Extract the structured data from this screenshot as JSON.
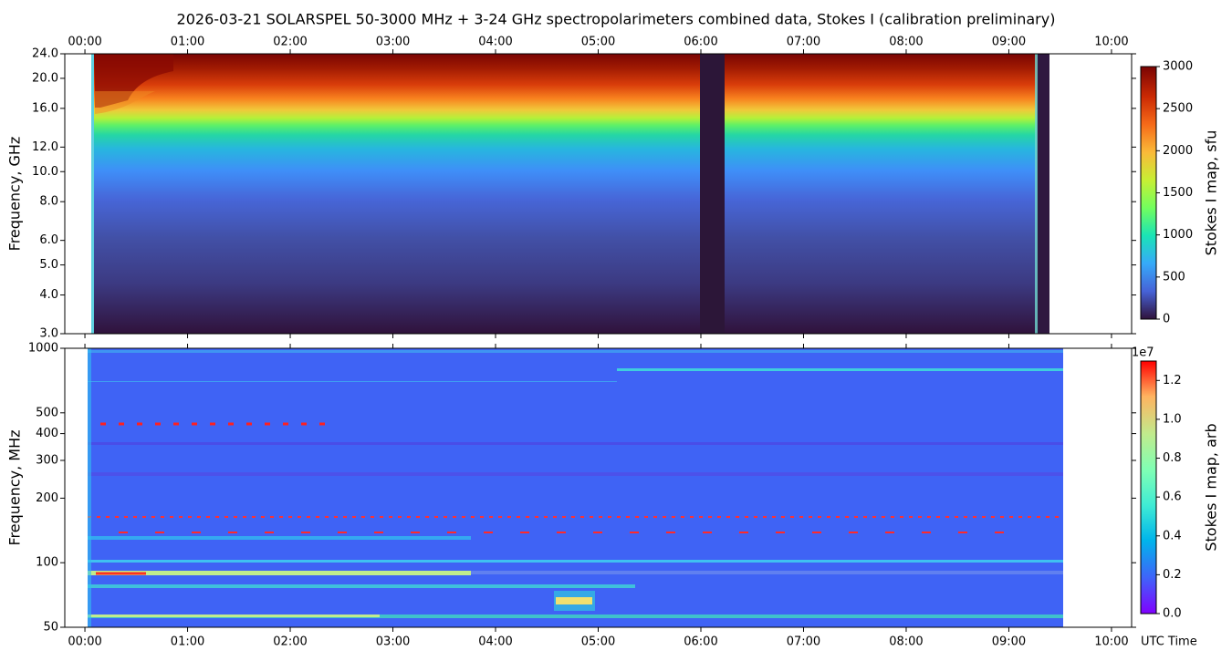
{
  "chart_data": [
    {
      "type": "heatmap",
      "title": "2026-03-21  SOLARSPEL  50-3000 MHz  +  3-24 GHz  spectropolarimeters combined data,  Stokes I  (calibration preliminary)",
      "ylabel": "Frequency, GHz",
      "log_y": true,
      "xlim": [
        -0.196,
        10.196
      ],
      "xticks": [
        {
          "value": 0,
          "label": "00:00"
        },
        {
          "value": 1,
          "label": "01:00"
        },
        {
          "value": 2,
          "label": "02:00"
        },
        {
          "value": 3,
          "label": "03:00"
        },
        {
          "value": 4,
          "label": "04:00"
        },
        {
          "value": 5,
          "label": "05:00"
        },
        {
          "value": 6,
          "label": "06:00"
        },
        {
          "value": 7,
          "label": "07:00"
        },
        {
          "value": 8,
          "label": "08:00"
        },
        {
          "value": 9,
          "label": "09:00"
        },
        {
          "value": 10,
          "label": "10:00"
        }
      ],
      "xtick_side": "top",
      "ylim": [
        3,
        24
      ],
      "yticks": [
        {
          "value": 3,
          "label": "3.0"
        },
        {
          "value": 4,
          "label": "4.0"
        },
        {
          "value": 5,
          "label": "5.0"
        },
        {
          "value": 6,
          "label": "6.0"
        },
        {
          "value": 8,
          "label": "8.0"
        },
        {
          "value": 10,
          "label": "10.0"
        },
        {
          "value": 12,
          "label": "12.0"
        },
        {
          "value": 16,
          "label": "16.0"
        },
        {
          "value": 20,
          "label": "20.0"
        },
        {
          "value": 24,
          "label": "24.0"
        }
      ],
      "colorbar": {
        "label": "Stokes I map, sfu",
        "lim": [
          0,
          3000
        ],
        "ticks": [
          0,
          500,
          1000,
          1500,
          2000,
          2500,
          3000
        ]
      }
    },
    {
      "type": "heatmap",
      "ylabel": "Frequency, MHz",
      "xlabel": "UTC Time",
      "log_y": true,
      "xlim": [
        -0.196,
        10.196
      ],
      "xticks": [
        {
          "value": 0,
          "label": "00:00"
        },
        {
          "value": 1,
          "label": "01:00"
        },
        {
          "value": 2,
          "label": "02:00"
        },
        {
          "value": 3,
          "label": "03:00"
        },
        {
          "value": 4,
          "label": "04:00"
        },
        {
          "value": 5,
          "label": "05:00"
        },
        {
          "value": 6,
          "label": "06:00"
        },
        {
          "value": 7,
          "label": "07:00"
        },
        {
          "value": 8,
          "label": "08:00"
        },
        {
          "value": 9,
          "label": "09:00"
        },
        {
          "value": 10,
          "label": "10:00"
        }
      ],
      "xtick_side": "bottom",
      "ylim": [
        50,
        1000
      ],
      "yticks": [
        50,
        100,
        200,
        300,
        400,
        500,
        1000
      ],
      "colorbar": {
        "label": "Stokes I map, arb",
        "offset_label": "1e7",
        "lim": [
          0,
          13000000
        ],
        "ticks": [
          {
            "value": 0,
            "label": "0.0"
          },
          {
            "value": 2000000,
            "label": "0.2"
          },
          {
            "value": 4000000,
            "label": "0.4"
          },
          {
            "value": 6000000,
            "label": "0.6"
          },
          {
            "value": 8000000,
            "label": "0.8"
          },
          {
            "value": 10000000,
            "label": "1.0"
          },
          {
            "value": 12000000,
            "label": "1.2"
          }
        ]
      }
    }
  ]
}
